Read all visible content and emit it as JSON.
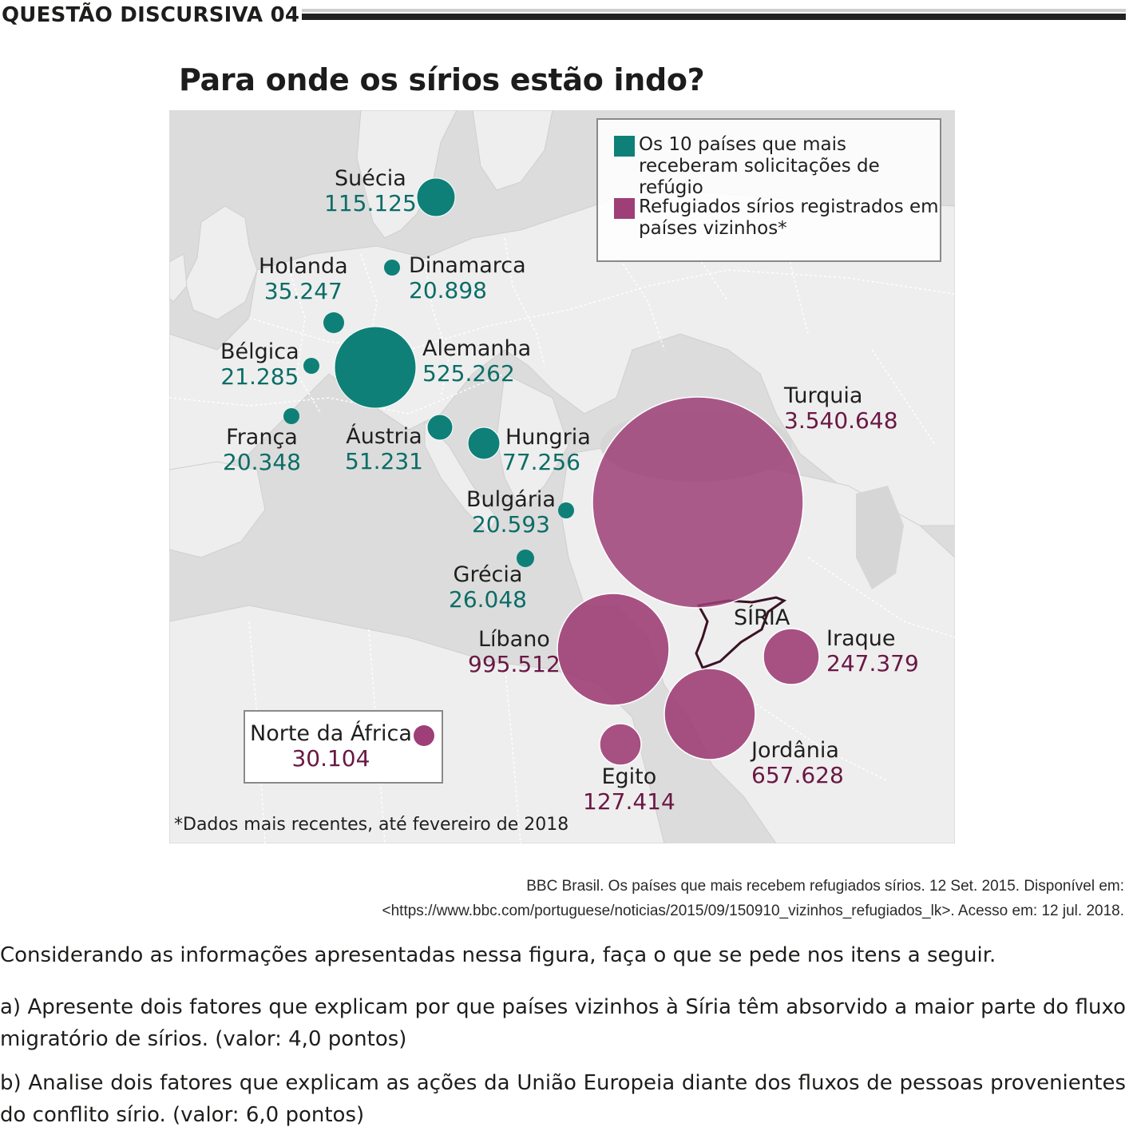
{
  "header": {
    "title": "QUESTÃO DISCURSIVA 04"
  },
  "map": {
    "title": "Para onde os sírios estão indo?",
    "legend": {
      "item1": "Os 10 países que mais\nreceberam solicitações de refúgio",
      "item2": "Refugiados sírios registrados em\npaíses vizinhos*",
      "color1": "#0e8078",
      "color2": "#9e3f77"
    },
    "syria_label": "SÍRIA",
    "countries": [
      {
        "name": "Suécia",
        "value": "115.125",
        "group": "asylum"
      },
      {
        "name": "Holanda",
        "value": "35.247",
        "group": "asylum"
      },
      {
        "name": "Dinamarca",
        "value": "20.898",
        "group": "asylum"
      },
      {
        "name": "Bélgica",
        "value": "21.285",
        "group": "asylum"
      },
      {
        "name": "Alemanha",
        "value": "525.262",
        "group": "asylum"
      },
      {
        "name": "França",
        "value": "20.348",
        "group": "asylum"
      },
      {
        "name": "Áustria",
        "value": "51.231",
        "group": "asylum"
      },
      {
        "name": "Hungria",
        "value": "77.256",
        "group": "asylum"
      },
      {
        "name": "Bulgária",
        "value": "20.593",
        "group": "asylum"
      },
      {
        "name": "Grécia",
        "value": "26.048",
        "group": "asylum"
      },
      {
        "name": "Turquia",
        "value": "3.540.648",
        "group": "neighbor"
      },
      {
        "name": "Líbano",
        "value": "995.512",
        "group": "neighbor"
      },
      {
        "name": "Iraque",
        "value": "247.379",
        "group": "neighbor"
      },
      {
        "name": "Jordânia",
        "value": "657.628",
        "group": "neighbor"
      },
      {
        "name": "Egito",
        "value": "127.414",
        "group": "neighbor"
      },
      {
        "name": "Norte da África",
        "value": "30.104",
        "group": "neighbor"
      }
    ],
    "footnote": "*Dados mais recentes, até fevereiro de 2018"
  },
  "citation": {
    "line1": "BBC Brasil. Os países que mais recebem refugiados sírios. 12 Set. 2015. Disponível em:",
    "line2": "<https://www.bbc.com/portuguese/noticias/2015/09/150910_vizinhos_refugiados_lk>. Acesso em: 12 jul. 2018."
  },
  "question": {
    "intro": "Considerando as informações apresentadas nessa figura, faça o que se pede nos itens a seguir.",
    "a": "a) Apresente dois fatores que explicam por que países vizinhos à Síria têm absorvido a maior parte do fluxo migratório de sírios. (valor: 4,0 pontos)",
    "b": "b) Analise dois fatores que explicam as ações da União Europeia diante dos fluxos de pessoas provenientes do conflito sírio. (valor: 6,0 pontos)"
  }
}
